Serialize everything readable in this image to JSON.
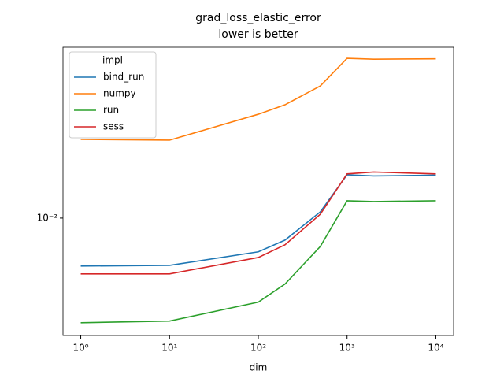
{
  "chart_data": {
    "type": "line",
    "title": "grad_loss_elastic_error",
    "subtitle": "lower is better",
    "x_label": "dim",
    "legend_title": "impl",
    "legend_position": "upper left",
    "x_scale": "log",
    "y_scale": "log",
    "x": [
      1,
      10,
      100,
      200,
      500,
      1000,
      2000,
      10000
    ],
    "series": [
      {
        "name": "bind_run",
        "color": "#1f77b4",
        "values": [
          0.00677,
          0.00681,
          0.0076,
          0.00836,
          0.01052,
          0.01422,
          0.01408,
          0.01417
        ]
      },
      {
        "name": "numpy",
        "color": "#ff7f0e",
        "values": [
          0.01896,
          0.01884,
          0.02326,
          0.02512,
          0.02929,
          0.03664,
          0.03639,
          0.03651
        ]
      },
      {
        "name": "run",
        "color": "#2ca02c",
        "values": [
          0.00427,
          0.00433,
          0.00505,
          0.00585,
          0.00794,
          0.01151,
          0.01144,
          0.01151
        ]
      },
      {
        "name": "sess",
        "color": "#d62728",
        "values": [
          0.00635,
          0.00635,
          0.00726,
          0.00805,
          0.01032,
          0.01432,
          0.01454,
          0.01432
        ]
      }
    ],
    "xlim": [
      0.631,
      15849
    ],
    "ylim": [
      0.00385,
      0.0401
    ],
    "xticks": [
      {
        "value": 1,
        "label": "10⁰"
      },
      {
        "value": 10,
        "label": "10¹"
      },
      {
        "value": 100,
        "label": "10²"
      },
      {
        "value": 1000,
        "label": "10³"
      },
      {
        "value": 10000,
        "label": "10⁴"
      }
    ],
    "yticks": [
      {
        "value": 0.01,
        "label": "10⁻²"
      }
    ]
  }
}
